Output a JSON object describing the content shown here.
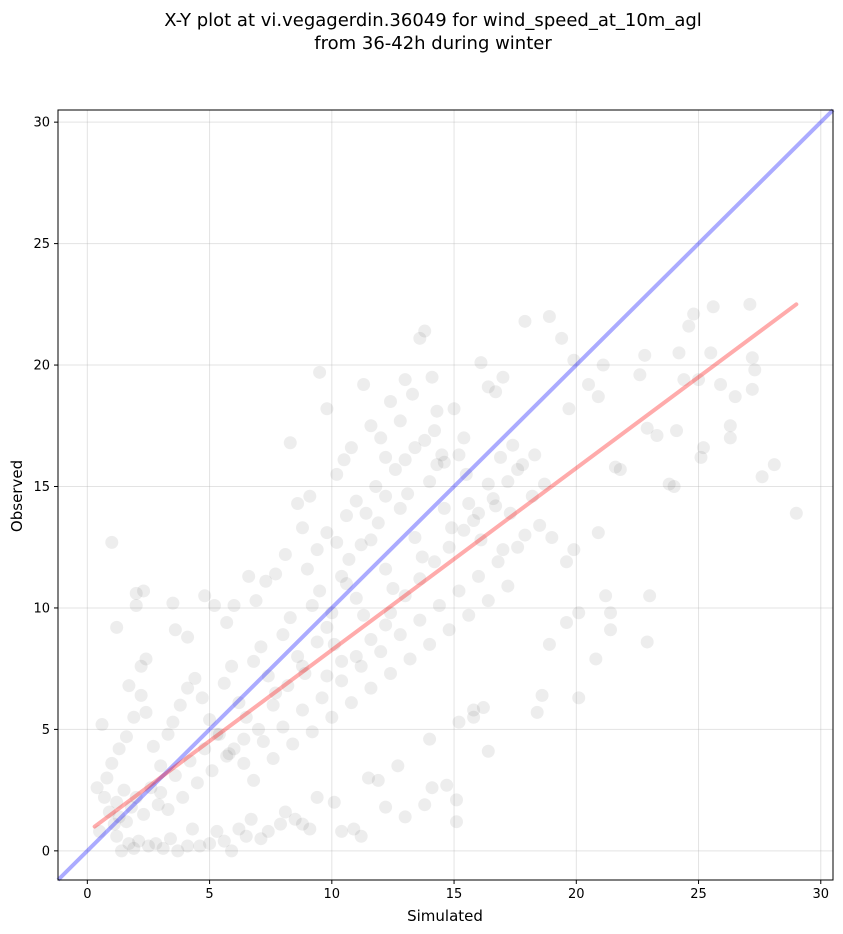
{
  "chart_data": {
    "type": "scatter",
    "title": [
      "X-Y plot at vi.vegagerdin.36049 for wind_speed_at_10m_agl",
      "from 36-42h during winter"
    ],
    "xlabel": "Simulated",
    "ylabel": "Observed",
    "xlim": [
      -1.2,
      30.5
    ],
    "ylim": [
      -1.2,
      30.5
    ],
    "xticks": [
      0,
      5,
      10,
      15,
      20,
      25,
      30
    ],
    "yticks": [
      0,
      5,
      10,
      15,
      20,
      25,
      30
    ],
    "grid": true,
    "point_color": "#000000",
    "point_alpha": 0.07,
    "reference_line": {
      "label": "1:1",
      "color": "#0000ff",
      "alpha": 0.33,
      "x": [
        -1.2,
        30.5
      ],
      "y": [
        -1.2,
        30.5
      ]
    },
    "regression_line": {
      "color": "#ff0000",
      "alpha": 0.33,
      "x": [
        0.3,
        29.0
      ],
      "y": [
        1.0,
        22.5
      ]
    },
    "points": [
      [
        1.0,
        12.7
      ],
      [
        1.2,
        9.2
      ],
      [
        0.6,
        5.2
      ],
      [
        2.0,
        10.6
      ],
      [
        2.0,
        10.1
      ],
      [
        2.3,
        10.7
      ],
      [
        2.2,
        7.6
      ],
      [
        2.4,
        7.9
      ],
      [
        1.7,
        6.8
      ],
      [
        2.2,
        6.4
      ],
      [
        3.5,
        10.2
      ],
      [
        3.6,
        9.1
      ],
      [
        4.1,
        8.8
      ],
      [
        4.8,
        10.5
      ],
      [
        5.2,
        10.1
      ],
      [
        5.7,
        9.4
      ],
      [
        6.0,
        10.1
      ],
      [
        6.6,
        11.3
      ],
      [
        6.9,
        10.3
      ],
      [
        7.3,
        11.1
      ],
      [
        7.7,
        11.4
      ],
      [
        8.1,
        12.2
      ],
      [
        8.3,
        16.8
      ],
      [
        8.8,
        13.3
      ],
      [
        8.6,
        14.3
      ],
      [
        9.1,
        14.6
      ],
      [
        9.5,
        19.7
      ],
      [
        9.8,
        18.2
      ],
      [
        10.2,
        15.5
      ],
      [
        10.5,
        16.1
      ],
      [
        10.8,
        16.6
      ],
      [
        11.3,
        19.2
      ],
      [
        11.6,
        17.5
      ],
      [
        12.0,
        17.0
      ],
      [
        12.2,
        16.2
      ],
      [
        12.4,
        18.5
      ],
      [
        12.8,
        17.7
      ],
      [
        13.0,
        19.4
      ],
      [
        13.3,
        18.8
      ],
      [
        13.6,
        21.1
      ],
      [
        13.8,
        21.4
      ],
      [
        14.1,
        19.5
      ],
      [
        14.3,
        18.1
      ],
      [
        14.5,
        16.3
      ],
      [
        15.0,
        18.2
      ],
      [
        15.4,
        17.0
      ],
      [
        15.6,
        14.3
      ],
      [
        16.1,
        20.1
      ],
      [
        16.4,
        19.1
      ],
      [
        16.7,
        18.9
      ],
      [
        17.0,
        19.5
      ],
      [
        16.9,
        16.2
      ],
      [
        17.4,
        16.7
      ],
      [
        17.9,
        21.8
      ],
      [
        18.3,
        16.3
      ],
      [
        18.7,
        15.1
      ],
      [
        18.9,
        22.0
      ],
      [
        19.4,
        21.1
      ],
      [
        19.7,
        18.2
      ],
      [
        19.9,
        20.2
      ],
      [
        20.5,
        19.2
      ],
      [
        21.1,
        20.0
      ],
      [
        20.9,
        18.7
      ],
      [
        21.6,
        15.8
      ],
      [
        21.8,
        15.7
      ],
      [
        22.6,
        19.6
      ],
      [
        22.8,
        20.4
      ],
      [
        22.9,
        17.4
      ],
      [
        23.3,
        17.1
      ],
      [
        23.8,
        15.1
      ],
      [
        24.1,
        17.3
      ],
      [
        24.2,
        20.5
      ],
      [
        24.4,
        19.4
      ],
      [
        24.6,
        21.6
      ],
      [
        24.8,
        22.1
      ],
      [
        25.0,
        19.4
      ],
      [
        25.2,
        16.6
      ],
      [
        25.5,
        20.5
      ],
      [
        25.6,
        22.4
      ],
      [
        25.9,
        19.2
      ],
      [
        26.3,
        17.5
      ],
      [
        26.5,
        18.7
      ],
      [
        27.1,
        22.5
      ],
      [
        27.2,
        20.3
      ],
      [
        27.3,
        19.8
      ],
      [
        27.2,
        19.0
      ],
      [
        27.6,
        15.4
      ],
      [
        28.1,
        15.9
      ],
      [
        29.0,
        13.9
      ],
      [
        25.1,
        16.2
      ],
      [
        26.3,
        17.0
      ],
      [
        24.0,
        15.0
      ],
      [
        23.0,
        10.5
      ],
      [
        22.9,
        8.6
      ],
      [
        20.9,
        13.1
      ],
      [
        21.2,
        10.5
      ],
      [
        21.4,
        9.8
      ],
      [
        21.4,
        9.1
      ],
      [
        20.8,
        7.9
      ],
      [
        20.1,
        6.3
      ],
      [
        20.1,
        9.8
      ],
      [
        19.9,
        12.4
      ],
      [
        19.6,
        11.9
      ],
      [
        19.6,
        9.4
      ],
      [
        19.0,
        12.9
      ],
      [
        18.9,
        8.5
      ],
      [
        18.6,
        6.4
      ],
      [
        18.4,
        5.7
      ],
      [
        16.4,
        4.1
      ],
      [
        16.2,
        5.9
      ],
      [
        15.8,
        5.5
      ],
      [
        15.8,
        5.8
      ],
      [
        15.2,
        5.3
      ],
      [
        15.1,
        2.1
      ],
      [
        15.1,
        1.2
      ],
      [
        14.7,
        2.7
      ],
      [
        14.1,
        2.6
      ],
      [
        13.8,
        1.9
      ],
      [
        14.0,
        4.6
      ],
      [
        13.0,
        1.4
      ],
      [
        12.7,
        3.5
      ],
      [
        12.2,
        1.8
      ],
      [
        11.9,
        2.9
      ],
      [
        11.5,
        3.0
      ],
      [
        11.2,
        0.6
      ],
      [
        10.9,
        0.9
      ],
      [
        10.4,
        0.8
      ],
      [
        10.1,
        2.0
      ],
      [
        9.4,
        2.2
      ],
      [
        9.1,
        0.9
      ],
      [
        8.8,
        1.1
      ],
      [
        8.5,
        1.3
      ],
      [
        8.1,
        1.6
      ],
      [
        7.9,
        1.1
      ],
      [
        7.4,
        0.8
      ],
      [
        7.1,
        0.5
      ],
      [
        6.7,
        1.3
      ],
      [
        6.5,
        0.6
      ],
      [
        6.2,
        0.9
      ],
      [
        5.9,
        0.0
      ],
      [
        5.6,
        0.4
      ],
      [
        5.3,
        0.8
      ],
      [
        5.0,
        0.3
      ],
      [
        4.6,
        0.2
      ],
      [
        4.3,
        0.9
      ],
      [
        4.1,
        0.2
      ],
      [
        3.7,
        0.0
      ],
      [
        3.4,
        0.5
      ],
      [
        3.1,
        0.1
      ],
      [
        2.8,
        0.3
      ],
      [
        2.5,
        0.2
      ],
      [
        2.1,
        0.4
      ],
      [
        1.9,
        0.1
      ],
      [
        1.7,
        0.3
      ],
      [
        1.4,
        0.0
      ],
      [
        1.2,
        0.6
      ],
      [
        1.1,
        1.1
      ],
      [
        1.3,
        1.4
      ],
      [
        0.9,
        1.6
      ],
      [
        1.6,
        1.2
      ],
      [
        1.8,
        1.8
      ],
      [
        0.7,
        2.2
      ],
      [
        1.2,
        2.0
      ],
      [
        1.5,
        2.5
      ],
      [
        2.0,
        2.2
      ],
      [
        2.3,
        1.5
      ],
      [
        2.6,
        2.6
      ],
      [
        2.9,
        1.9
      ],
      [
        0.5,
        0.8
      ],
      [
        0.4,
        2.6
      ],
      [
        0.8,
        3.0
      ],
      [
        1.0,
        3.6
      ],
      [
        1.3,
        4.2
      ],
      [
        1.6,
        4.7
      ],
      [
        1.9,
        5.5
      ],
      [
        2.4,
        5.7
      ],
      [
        2.7,
        4.3
      ],
      [
        3.0,
        3.5
      ],
      [
        3.3,
        4.8
      ],
      [
        3.5,
        5.3
      ],
      [
        3.8,
        6.0
      ],
      [
        4.1,
        6.7
      ],
      [
        4.4,
        7.1
      ],
      [
        4.7,
        6.3
      ],
      [
        5.0,
        5.4
      ],
      [
        5.3,
        4.8
      ],
      [
        5.6,
        6.9
      ],
      [
        5.9,
        7.6
      ],
      [
        6.2,
        6.1
      ],
      [
        6.5,
        5.5
      ],
      [
        6.8,
        7.8
      ],
      [
        7.1,
        8.4
      ],
      [
        7.4,
        7.2
      ],
      [
        7.7,
        6.5
      ],
      [
        8.0,
        8.9
      ],
      [
        8.3,
        9.6
      ],
      [
        8.6,
        8.0
      ],
      [
        8.9,
        7.3
      ],
      [
        9.2,
        10.1
      ],
      [
        9.5,
        10.7
      ],
      [
        9.8,
        9.2
      ],
      [
        10.1,
        8.5
      ],
      [
        10.4,
        11.3
      ],
      [
        10.7,
        12.0
      ],
      [
        11.0,
        10.4
      ],
      [
        11.3,
        9.7
      ],
      [
        11.6,
        12.8
      ],
      [
        11.9,
        13.5
      ],
      [
        12.2,
        11.6
      ],
      [
        12.5,
        10.8
      ],
      [
        12.8,
        14.1
      ],
      [
        13.1,
        14.7
      ],
      [
        13.4,
        12.9
      ],
      [
        13.7,
        12.1
      ],
      [
        14.0,
        15.2
      ],
      [
        14.3,
        15.9
      ],
      [
        14.6,
        14.1
      ],
      [
        14.9,
        13.3
      ],
      [
        15.2,
        16.3
      ],
      [
        15.5,
        15.5
      ],
      [
        15.8,
        13.6
      ],
      [
        16.1,
        12.8
      ],
      [
        16.4,
        15.1
      ],
      [
        16.7,
        14.2
      ],
      [
        17.0,
        12.4
      ],
      [
        17.3,
        13.9
      ],
      [
        17.6,
        15.7
      ],
      [
        17.9,
        13.0
      ],
      [
        18.2,
        14.6
      ],
      [
        18.5,
        13.4
      ],
      [
        6.0,
        4.2
      ],
      [
        6.4,
        3.6
      ],
      [
        6.8,
        2.9
      ],
      [
        7.2,
        4.5
      ],
      [
        7.6,
        3.8
      ],
      [
        8.0,
        5.1
      ],
      [
        8.4,
        4.4
      ],
      [
        8.8,
        5.8
      ],
      [
        9.2,
        4.9
      ],
      [
        9.6,
        6.3
      ],
      [
        10.0,
        5.5
      ],
      [
        10.4,
        7.0
      ],
      [
        10.8,
        6.1
      ],
      [
        11.2,
        7.6
      ],
      [
        11.6,
        6.7
      ],
      [
        12.0,
        8.2
      ],
      [
        12.4,
        7.3
      ],
      [
        12.8,
        8.9
      ],
      [
        13.2,
        7.9
      ],
      [
        13.6,
        9.5
      ],
      [
        14.0,
        8.5
      ],
      [
        14.4,
        10.1
      ],
      [
        14.8,
        9.1
      ],
      [
        15.2,
        10.7
      ],
      [
        15.6,
        9.7
      ],
      [
        16.0,
        11.3
      ],
      [
        16.4,
        10.3
      ],
      [
        16.8,
        11.9
      ],
      [
        17.2,
        10.9
      ],
      [
        17.6,
        12.5
      ],
      [
        3.0,
        2.4
      ],
      [
        3.3,
        1.7
      ],
      [
        3.6,
        3.1
      ],
      [
        3.9,
        2.2
      ],
      [
        4.2,
        3.7
      ],
      [
        4.5,
        2.8
      ],
      [
        4.8,
        4.2
      ],
      [
        5.1,
        3.3
      ],
      [
        5.4,
        4.8
      ],
      [
        5.7,
        3.9
      ],
      [
        9.0,
        11.6
      ],
      [
        9.4,
        12.4
      ],
      [
        9.8,
        13.1
      ],
      [
        10.2,
        12.7
      ],
      [
        10.6,
        13.8
      ],
      [
        11.0,
        14.4
      ],
      [
        11.4,
        13.9
      ],
      [
        11.8,
        15.0
      ],
      [
        12.2,
        14.6
      ],
      [
        12.6,
        15.7
      ],
      [
        13.0,
        16.1
      ],
      [
        13.4,
        16.6
      ],
      [
        13.8,
        16.9
      ],
      [
        14.2,
        17.3
      ],
      [
        14.6,
        16.0
      ],
      [
        11.2,
        12.6
      ],
      [
        10.6,
        11.0
      ],
      [
        10.0,
        9.8
      ],
      [
        9.4,
        8.6
      ],
      [
        8.8,
        7.6
      ],
      [
        8.2,
        6.8
      ],
      [
        7.6,
        6.0
      ],
      [
        7.0,
        5.0
      ],
      [
        6.4,
        4.6
      ],
      [
        5.8,
        4.0
      ],
      [
        12.4,
        9.8
      ],
      [
        13.0,
        10.5
      ],
      [
        13.6,
        11.2
      ],
      [
        14.2,
        11.9
      ],
      [
        14.8,
        12.5
      ],
      [
        15.4,
        13.2
      ],
      [
        16.0,
        13.9
      ],
      [
        16.6,
        14.5
      ],
      [
        17.2,
        15.2
      ],
      [
        17.8,
        15.9
      ],
      [
        11.0,
        8.0
      ],
      [
        11.6,
        8.7
      ],
      [
        12.2,
        9.3
      ],
      [
        9.8,
        7.2
      ],
      [
        10.4,
        7.8
      ]
    ]
  }
}
